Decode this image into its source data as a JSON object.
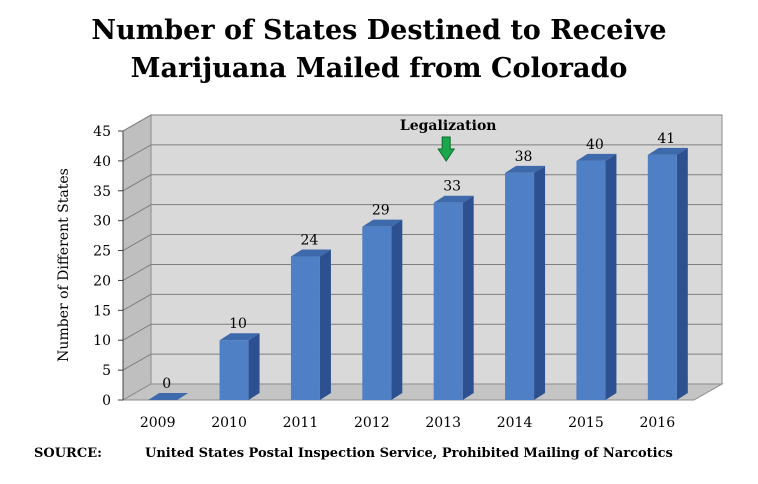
{
  "title_line1": "Number of States Destined to Receive",
  "title_line2": "Marijuana Mailed from Colorado",
  "source": {
    "label": "SOURCE:",
    "text": "United States Postal Inspection Service, Prohibited Mailing of Narcotics"
  },
  "chart_data": {
    "type": "bar",
    "categories": [
      "2009",
      "2010",
      "2011",
      "2012",
      "2013",
      "2014",
      "2015",
      "2016"
    ],
    "values": [
      0,
      10,
      24,
      29,
      33,
      38,
      40,
      41
    ],
    "ylabel": "Number of Different States",
    "xlabel": "",
    "ylim": [
      0,
      45
    ],
    "yticks": [
      0,
      5,
      10,
      15,
      20,
      25,
      30,
      35,
      40,
      45
    ],
    "grid": true,
    "style": "3d",
    "annotation": {
      "text": "Legalization",
      "category": "2013",
      "arrow_color": "#1aa84a"
    },
    "colors": {
      "bar_front": "#4f7fc4",
      "bar_side": "#2d5190",
      "bar_top": "#3e6aab",
      "wall": "#d9d9d9",
      "floor": "#c4c4c4"
    }
  }
}
